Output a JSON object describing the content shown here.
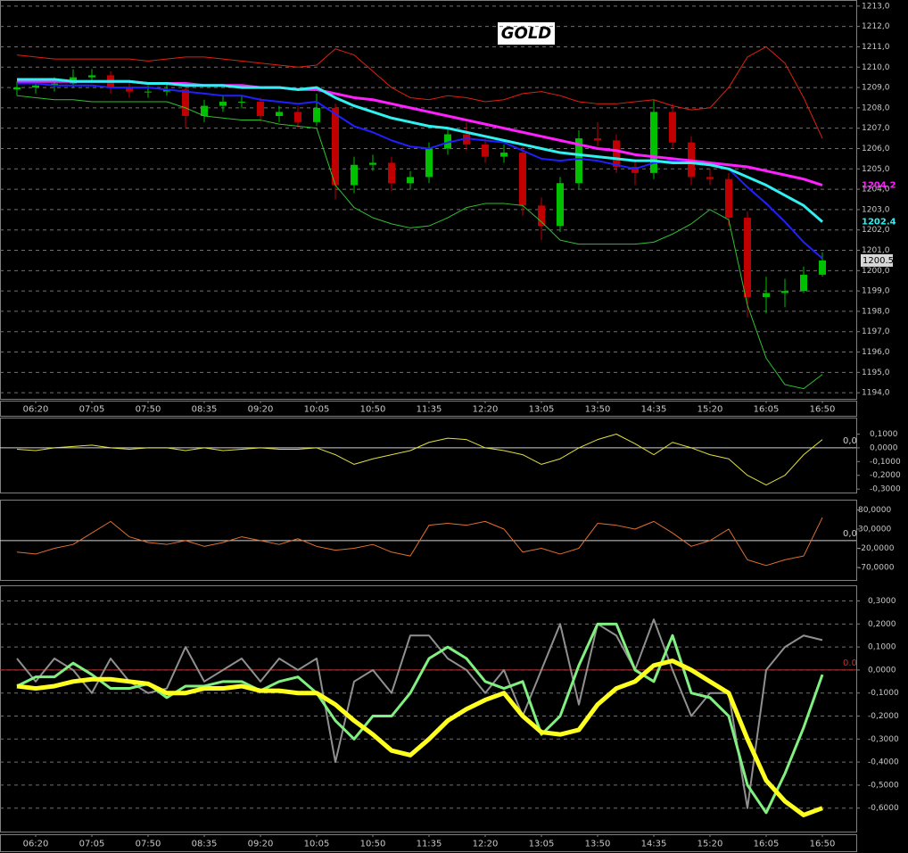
{
  "chart_data": [
    {
      "type": "candlestick",
      "title": "GOLD",
      "categories": [
        null,
        "06:20",
        null,
        null,
        "07:05",
        null,
        null,
        "07:50",
        null,
        null,
        "08:35",
        null,
        null,
        "09:20",
        null,
        null,
        "10:05",
        null,
        null,
        "10:50",
        null,
        null,
        "11:35",
        null,
        null,
        "12:20",
        null,
        null,
        "13:05",
        null,
        null,
        "13:50",
        null,
        null,
        "14:35",
        null,
        null,
        "15:20",
        null,
        null,
        "16:05",
        null,
        null,
        "16:50"
      ],
      "open": [
        1208.9,
        1209.0,
        1209.1,
        1209.2,
        1209.5,
        1209.6,
        1209.0,
        1208.8,
        1208.8,
        1208.9,
        1207.6,
        1208.1,
        1208.3,
        1208.3,
        1207.6,
        1207.8,
        1207.3,
        1208.0,
        1204.2,
        1205.2,
        1205.3,
        1204.3,
        1204.6,
        1206.0,
        1206.7,
        1206.2,
        1205.6,
        1205.8,
        1203.2,
        1202.2,
        1204.3,
        1206.5,
        1206.4,
        1205.1,
        1204.8,
        1207.8,
        1206.3,
        1204.6,
        1204.5,
        1202.6,
        1198.7,
        1198.9,
        1199.0,
        1199.8
      ],
      "high": [
        1209.3,
        1209.4,
        1209.5,
        1209.9,
        1209.9,
        1209.8,
        1209.3,
        1209.1,
        1209.2,
        1209.1,
        1208.4,
        1208.6,
        1208.6,
        1208.5,
        1208.1,
        1208.1,
        1208.7,
        1208.2,
        1205.6,
        1205.7,
        1205.6,
        1204.9,
        1206.3,
        1207.0,
        1207.3,
        1206.5,
        1206.2,
        1206.1,
        1203.6,
        1204.6,
        1206.9,
        1207.3,
        1206.7,
        1205.4,
        1208.4,
        1208.2,
        1206.6,
        1205.0,
        1204.8,
        1202.9,
        1199.7,
        1199.6,
        1200.2,
        1200.9
      ],
      "low": [
        1208.6,
        1208.7,
        1208.8,
        1209.0,
        1209.3,
        1208.7,
        1208.5,
        1208.5,
        1208.6,
        1207.0,
        1207.3,
        1207.8,
        1208.0,
        1207.3,
        1207.3,
        1207.0,
        1207.1,
        1203.5,
        1203.8,
        1204.9,
        1203.9,
        1204.0,
        1204.3,
        1205.7,
        1205.9,
        1205.3,
        1205.3,
        1202.7,
        1201.5,
        1201.9,
        1204.0,
        1206.1,
        1204.8,
        1204.2,
        1204.5,
        1206.0,
        1204.2,
        1204.2,
        1202.2,
        1197.7,
        1197.9,
        1198.2,
        1198.9,
        1199.7
      ],
      "close": [
        1209.0,
        1209.1,
        1209.2,
        1209.5,
        1209.6,
        1209.0,
        1208.8,
        1208.8,
        1208.9,
        1207.6,
        1208.1,
        1208.3,
        1208.3,
        1207.6,
        1207.8,
        1207.3,
        1208.0,
        1204.2,
        1205.2,
        1205.3,
        1204.3,
        1204.6,
        1206.0,
        1206.7,
        1206.2,
        1205.6,
        1205.8,
        1203.2,
        1202.2,
        1204.3,
        1206.5,
        1206.4,
        1205.1,
        1204.8,
        1207.8,
        1206.3,
        1204.6,
        1204.5,
        1202.6,
        1198.7,
        1198.9,
        1199.0,
        1199.8,
        1200.5
      ],
      "up_color": "#00c000",
      "down_color": "#c00000",
      "last_price_label": "1200.5",
      "series": [
        {
          "color": "#e02010",
          "width": 1,
          "values": [
            1210.6,
            1210.5,
            1210.4,
            1210.4,
            1210.4,
            1210.4,
            1210.4,
            1210.3,
            1210.4,
            1210.5,
            1210.5,
            1210.4,
            1210.3,
            1210.2,
            1210.1,
            1210.0,
            1210.1,
            1210.9,
            1210.6,
            1209.8,
            1209.0,
            1208.5,
            1208.4,
            1208.6,
            1208.5,
            1208.3,
            1208.4,
            1208.7,
            1208.8,
            1208.6,
            1208.3,
            1208.2,
            1208.2,
            1208.3,
            1208.4,
            1208.1,
            1207.9,
            1208.0,
            1209.0,
            1210.5,
            1211.0,
            1210.2,
            1208.5,
            1206.5
          ]
        },
        {
          "color": "#30c030",
          "width": 1,
          "values": [
            1208.6,
            1208.5,
            1208.4,
            1208.4,
            1208.3,
            1208.3,
            1208.3,
            1208.3,
            1208.3,
            1208.0,
            1207.6,
            1207.5,
            1207.4,
            1207.4,
            1207.2,
            1207.1,
            1207.0,
            1204.2,
            1203.1,
            1202.6,
            1202.3,
            1202.1,
            1202.2,
            1202.6,
            1203.1,
            1203.3,
            1203.3,
            1203.2,
            1202.4,
            1201.5,
            1201.3,
            1201.3,
            1201.3,
            1201.3,
            1201.4,
            1201.8,
            1202.3,
            1203.0,
            1202.5,
            1198.3,
            1195.7,
            1194.4,
            1194.2,
            1194.9
          ]
        },
        {
          "color": "#ff20ff",
          "width": 3,
          "last_label": "1204.2",
          "values": [
            1209.3,
            1209.3,
            1209.3,
            1209.3,
            1209.3,
            1209.3,
            1209.3,
            1209.2,
            1209.2,
            1209.2,
            1209.1,
            1209.1,
            1209.1,
            1209.0,
            1209.0,
            1208.9,
            1208.9,
            1208.7,
            1208.5,
            1208.4,
            1208.2,
            1208.0,
            1207.8,
            1207.6,
            1207.4,
            1207.2,
            1207.0,
            1206.8,
            1206.6,
            1206.4,
            1206.2,
            1206.0,
            1205.9,
            1205.7,
            1205.6,
            1205.5,
            1205.4,
            1205.3,
            1205.2,
            1205.1,
            1204.9,
            1204.7,
            1204.5,
            1204.2
          ]
        },
        {
          "color": "#2020ff",
          "width": 2,
          "values": [
            1209.2,
            1209.2,
            1209.1,
            1209.1,
            1209.1,
            1209.0,
            1209.0,
            1209.0,
            1208.9,
            1208.8,
            1208.7,
            1208.6,
            1208.6,
            1208.4,
            1208.3,
            1208.2,
            1208.3,
            1207.7,
            1207.1,
            1206.8,
            1206.4,
            1206.1,
            1206.0,
            1206.3,
            1206.5,
            1206.4,
            1206.3,
            1205.9,
            1205.5,
            1205.4,
            1205.5,
            1205.4,
            1205.2,
            1205.0,
            1205.3,
            1205.4,
            1205.3,
            1205.2,
            1205.0,
            1204.1,
            1203.3,
            1202.4,
            1201.4,
            1200.6
          ]
        },
        {
          "color": "#30f0f0",
          "width": 3,
          "last_label": "1202.4",
          "values": [
            1209.4,
            1209.4,
            1209.4,
            1209.3,
            1209.3,
            1209.3,
            1209.3,
            1209.2,
            1209.2,
            1209.1,
            1209.1,
            1209.1,
            1209.0,
            1209.0,
            1209.0,
            1208.9,
            1209.0,
            1208.5,
            1208.1,
            1207.8,
            1207.5,
            1207.3,
            1207.1,
            1207.0,
            1206.8,
            1206.6,
            1206.4,
            1206.2,
            1206.0,
            1205.8,
            1205.7,
            1205.6,
            1205.5,
            1205.4,
            1205.4,
            1205.3,
            1205.3,
            1205.2,
            1205.0,
            1204.6,
            1204.2,
            1203.7,
            1203.2,
            1202.4
          ]
        }
      ],
      "ylim": [
        1193.7,
        1213.3
      ],
      "yticks": [
        {
          "value": 1194,
          "label": "1194,0"
        },
        {
          "value": 1195,
          "label": "1195,0"
        },
        {
          "value": 1196,
          "label": "1196,0"
        },
        {
          "value": 1197,
          "label": "1197,0"
        },
        {
          "value": 1198,
          "label": "1198,0"
        },
        {
          "value": 1199,
          "label": "1199,0"
        },
        {
          "value": 1200,
          "label": "1200,0"
        },
        {
          "value": 1201,
          "label": "1201,0"
        },
        {
          "value": 1202,
          "label": "1202,0"
        },
        {
          "value": 1203,
          "label": "1203,0"
        },
        {
          "value": 1204,
          "label": "1204,0"
        },
        {
          "value": 1205,
          "label": "1205,0"
        },
        {
          "value": 1206,
          "label": "1206,0"
        },
        {
          "value": 1207,
          "label": "1207,0"
        },
        {
          "value": 1208,
          "label": "1208,0"
        },
        {
          "value": 1209,
          "label": "1209,0"
        },
        {
          "value": 1210,
          "label": "1210,0"
        },
        {
          "value": 1211,
          "label": "1211,0"
        },
        {
          "value": 1212,
          "label": "1212,0"
        },
        {
          "value": 1213,
          "label": "1213,0"
        }
      ],
      "grid": true
    },
    {
      "type": "line",
      "series": [
        {
          "color": "#e0e040",
          "width": 1,
          "values": [
            -0.01,
            -0.02,
            0.0,
            0.01,
            0.02,
            0.0,
            -0.01,
            0.0,
            0.0,
            -0.02,
            0.0,
            -0.02,
            -0.01,
            0.0,
            -0.01,
            -0.01,
            0.0,
            -0.05,
            -0.12,
            -0.08,
            -0.05,
            -0.02,
            0.04,
            0.07,
            0.06,
            0.0,
            -0.02,
            -0.05,
            -0.12,
            -0.08,
            0.0,
            0.06,
            0.1,
            0.03,
            -0.05,
            0.04,
            0.0,
            -0.05,
            -0.08,
            -0.2,
            -0.27,
            -0.2,
            -0.05,
            0.06
          ]
        }
      ],
      "hline": {
        "value": 0,
        "label": "0,0",
        "color": "#d0d0d0"
      },
      "ylim": [
        -0.325,
        0.22
      ],
      "yticks": [
        {
          "value": 0.1,
          "label": "0,1000"
        },
        {
          "value": 0,
          "label": "0,0000"
        },
        {
          "value": -0.1,
          "label": "-0,1000"
        },
        {
          "value": -0.2,
          "label": "-0,2000"
        },
        {
          "value": -0.3,
          "label": "-0,3000"
        }
      ],
      "grid": false
    },
    {
      "type": "line",
      "series": [
        {
          "color": "#e07030",
          "width": 1,
          "values": [
            -30,
            -35,
            -20,
            -10,
            20,
            50,
            10,
            -5,
            -10,
            0,
            -15,
            -5,
            10,
            0,
            -10,
            5,
            -15,
            -25,
            -20,
            -10,
            -30,
            -40,
            40,
            45,
            40,
            50,
            30,
            -30,
            -20,
            -35,
            -20,
            45,
            40,
            30,
            50,
            20,
            -15,
            0,
            30,
            -50,
            -65,
            -50,
            -40,
            60
          ]
        }
      ],
      "hline": {
        "value": 0,
        "label": "0,0",
        "color": "#d0d0d0"
      },
      "ylim": [
        -102.6,
        106.7
      ],
      "yticks": [
        {
          "value": 80,
          "label": "80,0000"
        },
        {
          "value": 30,
          "label": "30,0000"
        },
        {
          "value": -20,
          "label": "-20,0000"
        },
        {
          "value": -70,
          "label": "-70,0000"
        }
      ],
      "grid": false
    },
    {
      "type": "line",
      "series": [
        {
          "color": "#909090",
          "width": 2,
          "values": [
            0.05,
            -0.05,
            0.05,
            0.0,
            -0.1,
            0.05,
            -0.05,
            -0.1,
            -0.08,
            0.1,
            -0.05,
            0.0,
            0.05,
            -0.05,
            0.05,
            0.0,
            0.05,
            -0.4,
            -0.05,
            0.0,
            -0.1,
            0.15,
            0.15,
            0.05,
            0.0,
            -0.1,
            0.0,
            -0.2,
            0.0,
            0.2,
            -0.15,
            0.2,
            0.15,
            0.0,
            0.22,
            0.0,
            -0.2,
            -0.1,
            -0.1,
            -0.6,
            0.0,
            0.1,
            0.15,
            0.13
          ]
        },
        {
          "color": "#80f080",
          "width": 3,
          "values": [
            -0.07,
            -0.03,
            -0.03,
            0.03,
            -0.02,
            -0.08,
            -0.08,
            -0.06,
            -0.12,
            -0.07,
            -0.07,
            -0.05,
            -0.05,
            -0.09,
            -0.05,
            -0.03,
            -0.1,
            -0.22,
            -0.3,
            -0.2,
            -0.2,
            -0.1,
            0.05,
            0.1,
            0.05,
            -0.05,
            -0.08,
            -0.05,
            -0.28,
            -0.2,
            0.02,
            0.2,
            0.2,
            0.0,
            -0.05,
            0.15,
            -0.1,
            -0.12,
            -0.2,
            -0.5,
            -0.62,
            -0.45,
            -0.25,
            -0.02
          ]
        },
        {
          "color": "#ffff20",
          "width": 5,
          "values": [
            -0.07,
            -0.08,
            -0.07,
            -0.05,
            -0.04,
            -0.04,
            -0.05,
            -0.06,
            -0.1,
            -0.1,
            -0.08,
            -0.08,
            -0.07,
            -0.09,
            -0.09,
            -0.1,
            -0.1,
            -0.15,
            -0.22,
            -0.28,
            -0.35,
            -0.37,
            -0.3,
            -0.22,
            -0.17,
            -0.13,
            -0.1,
            -0.2,
            -0.27,
            -0.28,
            -0.26,
            -0.15,
            -0.08,
            -0.05,
            0.02,
            0.04,
            0.0,
            -0.05,
            -0.1,
            -0.3,
            -0.48,
            -0.57,
            -0.63,
            -0.6
          ]
        }
      ],
      "hline": {
        "value": 0,
        "label": "0.0",
        "color": "#c03030"
      },
      "ylim": [
        -0.702,
        0.368
      ],
      "yticks": [
        {
          "value": 0.3,
          "label": "0,3000"
        },
        {
          "value": 0.2,
          "label": "0,2000"
        },
        {
          "value": 0.1,
          "label": "0,1000"
        },
        {
          "value": 0,
          "label": "0,0000"
        },
        {
          "value": -0.1,
          "label": "-0,1000"
        },
        {
          "value": -0.2,
          "label": "-0,2000"
        },
        {
          "value": -0.3,
          "label": "-0,3000"
        },
        {
          "value": -0.4,
          "label": "-0,4000"
        },
        {
          "value": -0.5,
          "label": "-0,5000"
        },
        {
          "value": -0.6,
          "label": "-0,6000"
        }
      ],
      "grid": true
    }
  ]
}
